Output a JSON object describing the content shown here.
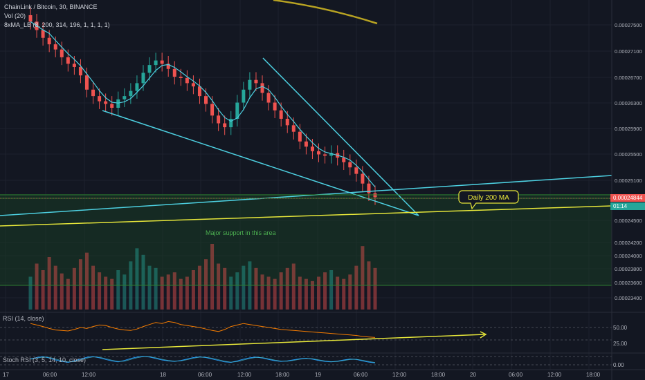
{
  "header": {
    "symbol_line": "ChainLink / Bitcoin, 30, BINANCE",
    "vol_line": "Vol (20)",
    "ma_line": "8xMA_LB (8, 200, 314, 196, 1, 1, 1, 1)"
  },
  "price_tags": {
    "last_price": "0.00024844",
    "countdown": "01:14"
  },
  "annotations": {
    "daily_ma": "Daily 200 MA",
    "support": "Major support in this area"
  },
  "indicators": {
    "rsi_label": "RSI (14, close)",
    "stoch_label": "Stoch RSI (3, 5, 14, 10, close)"
  },
  "colors": {
    "background": "#131722",
    "up": "#26a69a",
    "down": "#ef5350",
    "trendline": "#4dd0e1",
    "ma": "#e6e63a",
    "rsi": "#f57c00",
    "support_zone": "#1b3b24"
  },
  "chart_data": [
    {
      "type": "candlestick",
      "title": "ChainLink / Bitcoin, 30, BINANCE",
      "y_ticks": [
        "0.00027500",
        "0.00027100",
        "0.00026700",
        "0.00026300",
        "0.00025900",
        "0.00025500",
        "0.00025100",
        "0.00024500",
        "0.00024200",
        "0.00024000",
        "0.00023800",
        "0.00023600",
        "0.00023400"
      ],
      "x_ticks": [
        "17",
        "06:00",
        "12:00",
        "18",
        "06:00",
        "12:00",
        "18:00",
        "19",
        "06:00",
        "12:00",
        "18:00",
        "20",
        "06:00",
        "12:00",
        "18:00"
      ],
      "close_series": [
        0.0002755,
        0.0002742,
        0.000273,
        0.000272,
        0.0002712,
        0.00027,
        0.000269,
        0.0002685,
        0.0002672,
        0.000265,
        0.000264,
        0.0002632,
        0.0002628,
        0.0002622,
        0.0002635,
        0.000264,
        0.0002648,
        0.000266,
        0.0002676,
        0.0002688,
        0.0002695,
        0.000269,
        0.0002682,
        0.000267,
        0.0002668,
        0.000266,
        0.0002655,
        0.000264,
        0.0002628,
        0.000261,
        0.0002598,
        0.0002592,
        0.0002605,
        0.000263,
        0.000265,
        0.0002665,
        0.000266,
        0.0002645,
        0.000263,
        0.0002618,
        0.0002605,
        0.0002595,
        0.0002585,
        0.000257,
        0.0002562,
        0.0002555,
        0.000255,
        0.0002548,
        0.0002552,
        0.0002545,
        0.0002538,
        0.000253,
        0.000252,
        0.0002505,
        0.000249,
        0.0002484
      ]
    },
    {
      "type": "bar",
      "title": "Vol (20)",
      "values": [
        30,
        42,
        36,
        48,
        40,
        33,
        28,
        38,
        46,
        52,
        40,
        34,
        30,
        28,
        36,
        32,
        44,
        56,
        50,
        40,
        38,
        30,
        32,
        34,
        28,
        30,
        36,
        40,
        46,
        60,
        42,
        38,
        30,
        34,
        40,
        44,
        38,
        32,
        30,
        28,
        34,
        38,
        42,
        30,
        28,
        26,
        30,
        34,
        36,
        30,
        28,
        32,
        40,
        58,
        44,
        38
      ]
    },
    {
      "type": "line",
      "title": "RSI (14, close)",
      "y_ticks": [
        "50.00",
        "25.00"
      ],
      "values": [
        58,
        55,
        52,
        48,
        45,
        44,
        43,
        46,
        50,
        48,
        52,
        55,
        54,
        50,
        47,
        45,
        44,
        47,
        52,
        56,
        60,
        58,
        62,
        60,
        56,
        54,
        52,
        50,
        47,
        44,
        42,
        46,
        52,
        55,
        58,
        56,
        54,
        52,
        50,
        48,
        46,
        45,
        44,
        43,
        42,
        41,
        40,
        39,
        38,
        37,
        36,
        35,
        34,
        32,
        31,
        30
      ]
    },
    {
      "type": "line",
      "title": "Stoch RSI (3, 5, 14, 10, close)",
      "y_ticks": [
        "0.00"
      ],
      "values": [
        60,
        75,
        85,
        70,
        50,
        35,
        25,
        40,
        60,
        78,
        85,
        72,
        55,
        40,
        30,
        45,
        65,
        80,
        88,
        80,
        65,
        50,
        40,
        35,
        45,
        60,
        75,
        82,
        75,
        60,
        45,
        30,
        25,
        40,
        58,
        72,
        80,
        70,
        55,
        42,
        35,
        40,
        52,
        62,
        68,
        58,
        45,
        35,
        30,
        38,
        50,
        60,
        55,
        40,
        28,
        20
      ]
    }
  ]
}
